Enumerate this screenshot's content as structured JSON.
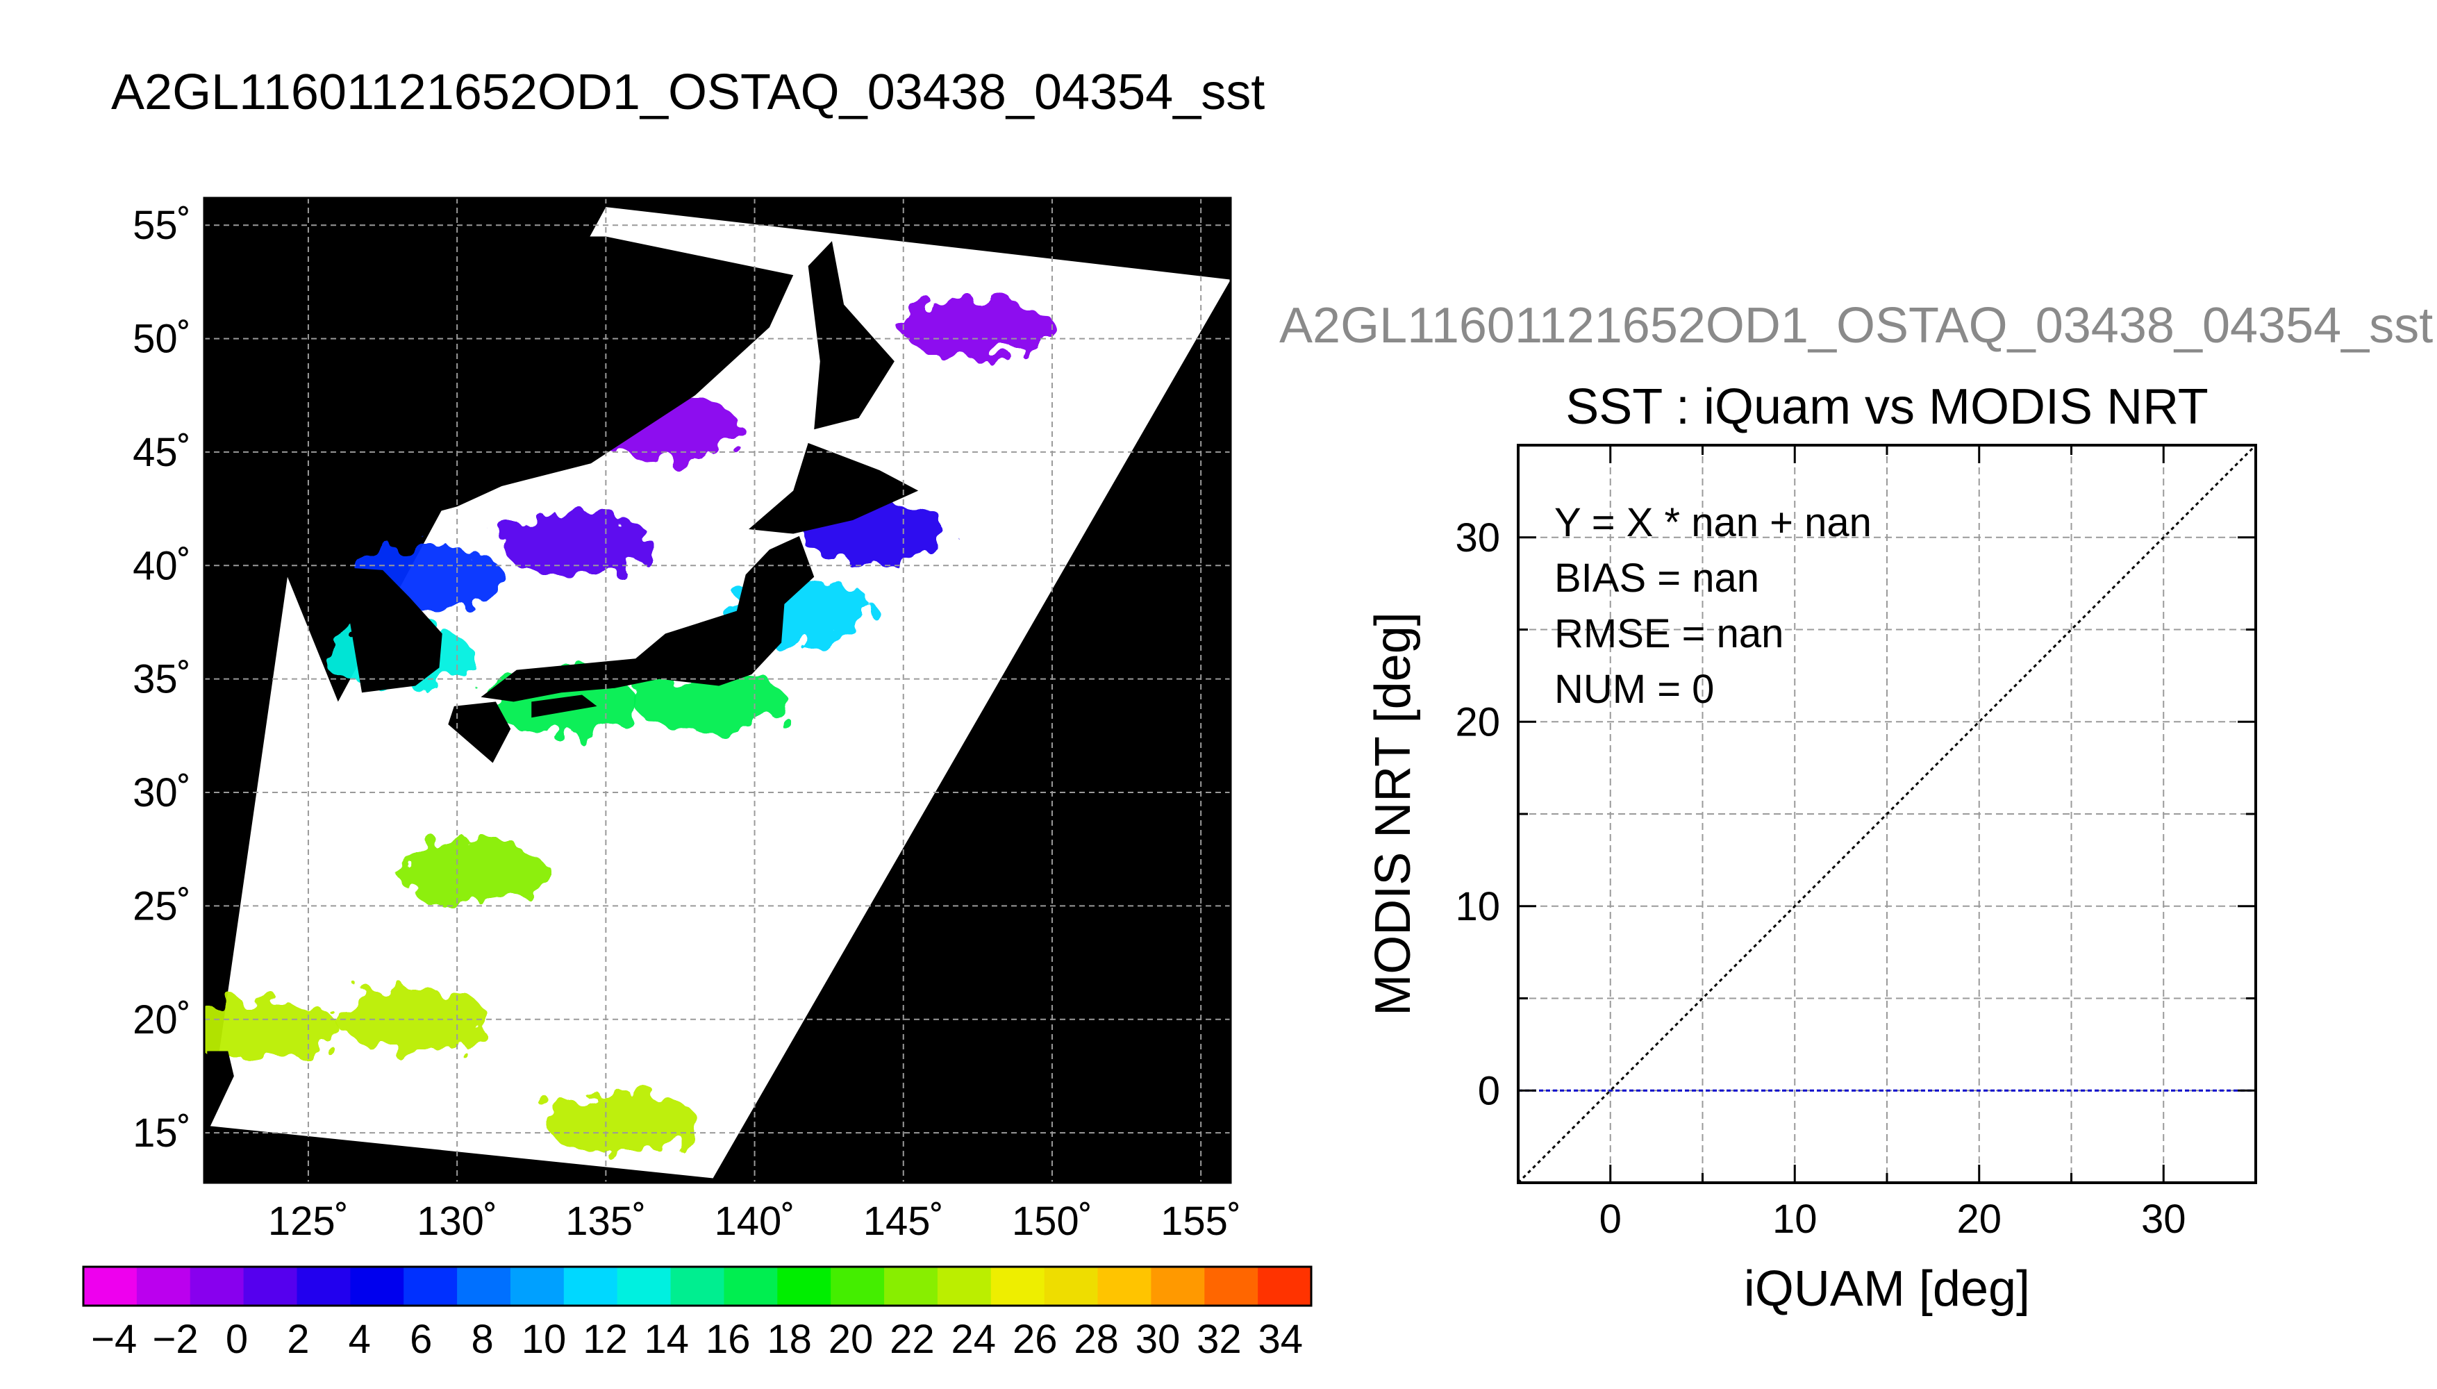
{
  "main_title": "A2GL11601121652OD1_OSTAQ_03438_04354_sst",
  "right_title": "A2GL11601121652OD1_OSTAQ_03438_04354_sst",
  "chart_data": [
    {
      "type": "map",
      "xlabel": "",
      "ylabel": "",
      "xlim": [
        121.5,
        156
      ],
      "ylim": [
        12.8,
        56.2
      ],
      "x_ticks": [
        125,
        130,
        135,
        140,
        145,
        150,
        155
      ],
      "y_ticks": [
        15,
        20,
        25,
        30,
        35,
        40,
        45,
        50,
        55
      ],
      "x_tick_labels": [
        "125˚",
        "130˚",
        "135˚",
        "140˚",
        "145˚",
        "150˚",
        "155˚"
      ],
      "y_tick_labels": [
        "15˚",
        "20˚",
        "25˚",
        "30˚",
        "35˚",
        "40˚",
        "45˚",
        "50˚",
        "55˚"
      ],
      "grid": true,
      "land_color": "#000000",
      "no_data_color": "#ffffff",
      "swath_corners": [
        [
          121.7,
          15.3
        ],
        [
          138.6,
          13.0
        ],
        [
          156.0,
          52.6
        ],
        [
          135.0,
          55.8
        ],
        [
          126.0,
          34.0
        ],
        [
          124.3,
          39.5
        ],
        [
          122.0,
          18.5
        ]
      ],
      "sst_patches": [
        {
          "lon": 123.5,
          "lat": 19.5,
          "sst": 27
        },
        {
          "lon": 135.5,
          "lat": 15.5,
          "sst": 28
        },
        {
          "lon": 128.5,
          "lat": 20.0,
          "sst": 27
        },
        {
          "lon": 130.5,
          "lat": 26.5,
          "sst": 25
        },
        {
          "lon": 133.5,
          "lat": 34.0,
          "sst": 19
        },
        {
          "lon": 138.5,
          "lat": 34.0,
          "sst": 19
        },
        {
          "lon": 128.0,
          "lat": 36.0,
          "sst": 15
        },
        {
          "lon": 129.0,
          "lat": 39.5,
          "sst": 8
        },
        {
          "lon": 134.0,
          "lat": 41.0,
          "sst": 2
        },
        {
          "lon": 141.5,
          "lat": 38.0,
          "sst": 13
        },
        {
          "lon": 144.0,
          "lat": 41.5,
          "sst": 3
        },
        {
          "lon": 137.0,
          "lat": 46.0,
          "sst": 0
        },
        {
          "lon": 147.5,
          "lat": 50.5,
          "sst": 0
        }
      ]
    },
    {
      "type": "colorbar",
      "min": -5,
      "max": 35,
      "step": 2,
      "tick_labels": [
        "−4",
        "−2",
        "0",
        "2",
        "4",
        "6",
        "8",
        "10",
        "12",
        "14",
        "16",
        "18",
        "20",
        "22",
        "24",
        "26",
        "28",
        "30",
        "32",
        "34"
      ],
      "colors": [
        "#ee00ee",
        "#bb00ee",
        "#8800ee",
        "#5500ee",
        "#2200ee",
        "#0000ee",
        "#0030ff",
        "#0070ff",
        "#00a0ff",
        "#00d8ff",
        "#00f0e0",
        "#00ee90",
        "#00ee50",
        "#00ee00",
        "#44ee00",
        "#88ee00",
        "#bbee00",
        "#eeee00",
        "#eedd00",
        "#ffc400",
        "#ff9900",
        "#ff6600",
        "#ff3300"
      ]
    },
    {
      "type": "scatter",
      "title": "SST : iQuam vs MODIS NRT",
      "xlabel": "iQUAM [deg]",
      "ylabel": "MODIS NRT [deg]",
      "xlim": [
        -5,
        35
      ],
      "ylim": [
        -5,
        35
      ],
      "x_ticks": [
        0,
        10,
        20,
        30
      ],
      "y_ticks": [
        0,
        10,
        20,
        30
      ],
      "minor_step": 5,
      "grid": true,
      "points": [],
      "reference_line": {
        "type": "y=x",
        "color": "#000000",
        "style": "dotted"
      },
      "zero_line": {
        "y": 0,
        "color": "#0000cc",
        "style": "dashed"
      },
      "stats": [
        "Y = X * nan + nan",
        "BIAS = nan",
        "RMSE = nan",
        "NUM = 0"
      ]
    }
  ]
}
